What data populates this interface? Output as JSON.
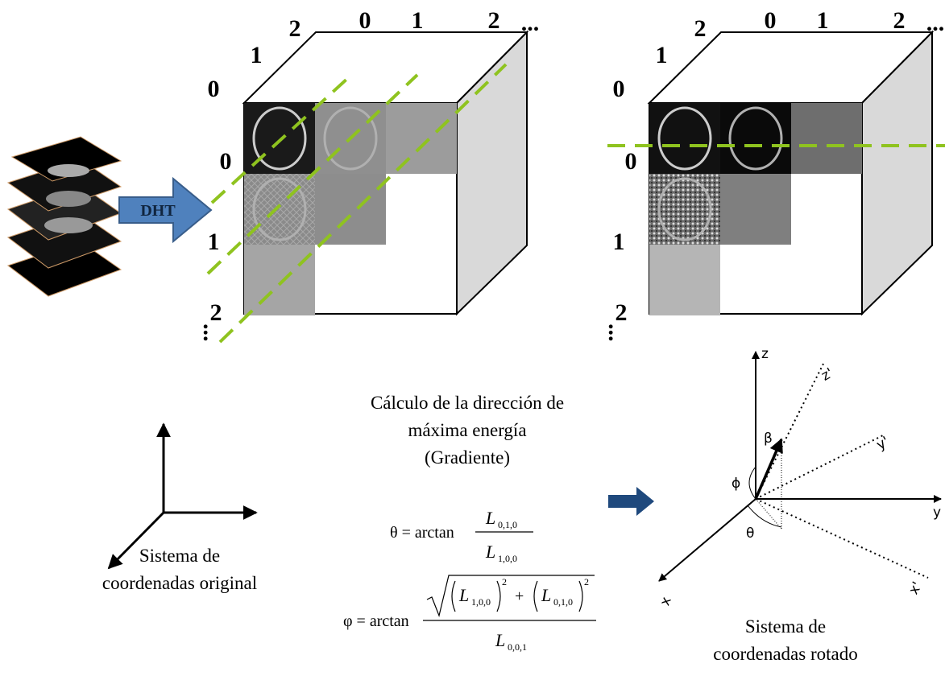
{
  "left_cube": {
    "depth_labels": [
      "0",
      "1",
      "2"
    ],
    "column_labels": [
      "0",
      "1",
      "2",
      "..."
    ],
    "row_labels": [
      "0",
      "1",
      "2"
    ],
    "row_ellipsis": "..."
  },
  "right_cube": {
    "depth_labels": [
      "0",
      "1",
      "2"
    ],
    "column_labels": [
      "0",
      "1",
      "2",
      "..."
    ],
    "row_labels": [
      "0",
      "1",
      "2"
    ],
    "row_ellipsis": "..."
  },
  "transform_label": "DHT",
  "gradient_caption": [
    "Cálculo de la dirección de",
    "máxima energía",
    "(Gradiente)"
  ],
  "theta_formula": {
    "lhs": "θ = arctan",
    "numerator": {
      "base": "L",
      "sub": "0,1,0"
    },
    "denominator": {
      "base": "L",
      "sub": "1,0,0"
    }
  },
  "phi_formula": {
    "lhs": "φ = arctan",
    "numerator_terms": [
      {
        "base": "L",
        "sub": "1,0,0",
        "sup": "2"
      },
      {
        "base": "L",
        "sub": "0,1,0",
        "sup": "2"
      }
    ],
    "operator": "+",
    "denominator": {
      "base": "L",
      "sub": "0,0,1"
    }
  },
  "original_caption": [
    "Sistema de",
    "coordenadas original"
  ],
  "rotated_caption": [
    "Sistema de",
    "coordenadas rotado"
  ],
  "rotated_axes": {
    "z": "z",
    "y": "y",
    "x": "x",
    "z_prime": "z'",
    "y_prime": "y'",
    "x_prime": "x'",
    "beta": "β",
    "phi": "ϕ",
    "theta": "θ"
  }
}
